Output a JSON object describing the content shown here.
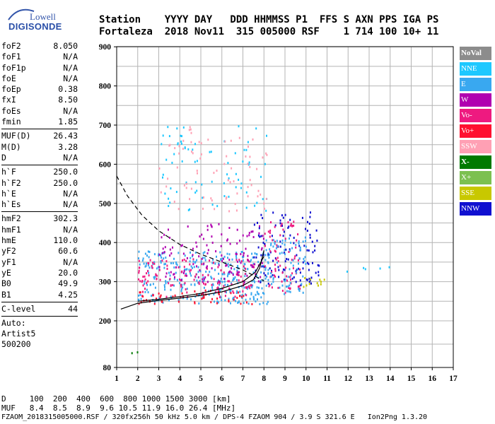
{
  "logo": {
    "line1": "Lowell",
    "line2": "DIGISONDE"
  },
  "header": {
    "labels": "Station    YYYY DAY   DDD HHMMSS P1  FFS S AXN PPS IGA PS",
    "values": "Fortaleza  2018 Nov11  315 005000 RSF    1 714 100 10+ 11"
  },
  "params": {
    "group1": [
      {
        "label": "foF2",
        "value": "8.050"
      },
      {
        "label": "foF1",
        "value": "N/A"
      },
      {
        "label": "foF1p",
        "value": "N/A"
      },
      {
        "label": "foE",
        "value": "N/A"
      },
      {
        "label": "foEp",
        "value": "0.38"
      },
      {
        "label": "fxI",
        "value": "8.50"
      },
      {
        "label": "foEs",
        "value": "N/A"
      },
      {
        "label": "fmin",
        "value": "1.85"
      }
    ],
    "group2": [
      {
        "label": "MUF(D)",
        "value": "26.43"
      },
      {
        "label": "M(D)",
        "value": "3.28"
      },
      {
        "label": "D",
        "value": "N/A"
      }
    ],
    "group3": [
      {
        "label": "h`F",
        "value": "250.0"
      },
      {
        "label": "h`F2",
        "value": "250.0"
      },
      {
        "label": "h`E",
        "value": "N/A"
      },
      {
        "label": "h`Es",
        "value": "N/A"
      }
    ],
    "group4": [
      {
        "label": "hmF2",
        "value": "302.3"
      },
      {
        "label": "hmF1",
        "value": "N/A"
      },
      {
        "label": "hmE",
        "value": "110.0"
      },
      {
        "label": "yF2",
        "value": "60.6"
      },
      {
        "label": "yF1",
        "value": "N/A"
      },
      {
        "label": "yE",
        "value": "20.0"
      },
      {
        "label": "B0",
        "value": "49.9"
      },
      {
        "label": "B1",
        "value": "4.25"
      }
    ],
    "group5": [
      {
        "label": "C-level",
        "value": "44"
      }
    ],
    "auto": [
      "Auto:",
      "Artist5",
      "500200"
    ]
  },
  "legend": [
    {
      "label": "NoVal",
      "color": "#8c8c8c"
    },
    {
      "label": "NNE",
      "color": "#1ec8ff"
    },
    {
      "label": "E",
      "color": "#39a8f0"
    },
    {
      "label": "W",
      "color": "#b000b0"
    },
    {
      "label": "Vo-",
      "color": "#ee1a80"
    },
    {
      "label": "Vo+",
      "color": "#ff1030"
    },
    {
      "label": "SSW",
      "color": "#ffa0b4"
    },
    {
      "label": "X-",
      "color": "#007a00"
    },
    {
      "label": "X+",
      "color": "#7cc050"
    },
    {
      "label": "SSE",
      "color": "#c8c800"
    },
    {
      "label": "NNW",
      "color": "#1010d0"
    }
  ],
  "footer": {
    "d_line": "D     100  200  400  600  800 1000 1500 3000 [km]",
    "muf_line": "MUF   8.4  8.5  8.9  9.6 10.5 11.9 16.0 26.4 [MHz]",
    "file_line": "FZAOM_2018315005000.RSF / 320fx256h 50 kHz 5.0 km / DPS-4 FZAOM 904 / 3.9 S 321.6 E   Ion2Png 1.3.20"
  },
  "chart_data": {
    "type": "scatter",
    "xlim": [
      1,
      17
    ],
    "ylim": [
      80,
      900
    ],
    "x_ticks": [
      "1",
      "2",
      "3",
      "4",
      "5",
      "6",
      "7",
      "8",
      "9",
      "10",
      "11",
      "12",
      "13",
      "14",
      "15",
      "16",
      "17"
    ],
    "y_ticks": [
      "80",
      "200",
      "300",
      "400",
      "500",
      "600",
      "700",
      "800",
      "900"
    ],
    "grid": true,
    "legend_placement": "right",
    "clusters": [
      {
        "series": "E",
        "x": [
          2.0,
          8.2
        ],
        "y": [
          245,
          380
        ],
        "density": 0.75
      },
      {
        "series": "Vo-",
        "x": [
          2.0,
          7.6
        ],
        "y": [
          260,
          360
        ],
        "density": 0.45
      },
      {
        "series": "W",
        "x": [
          3.0,
          8.0
        ],
        "y": [
          300,
          450
        ],
        "density": 0.3
      },
      {
        "series": "Vo+",
        "x": [
          2.0,
          7.4
        ],
        "y": [
          245,
          280
        ],
        "density": 0.5
      },
      {
        "series": "NNE",
        "x": [
          3.0,
          8.2
        ],
        "y": [
          480,
          700
        ],
        "density": 0.12
      },
      {
        "series": "SSW",
        "x": [
          3.0,
          8.2
        ],
        "y": [
          480,
          700
        ],
        "density": 0.12
      },
      {
        "series": "NNW",
        "x": [
          7.5,
          10.6
        ],
        "y": [
          290,
          480
        ],
        "density": 0.35
      },
      {
        "series": "Vo-",
        "x": [
          8.0,
          9.7
        ],
        "y": [
          270,
          460
        ],
        "density": 0.4
      },
      {
        "series": "E",
        "x": [
          8.0,
          10.0
        ],
        "y": [
          270,
          420
        ],
        "density": 0.5
      },
      {
        "series": "SSE",
        "x": [
          9.8,
          11.0
        ],
        "y": [
          282,
          312
        ],
        "density": 0.55
      },
      {
        "series": "NNE",
        "x": [
          11.0,
          14.2
        ],
        "y": [
          320,
          345
        ],
        "density": 0.12
      },
      {
        "series": "X-",
        "x": [
          1.6,
          2.2
        ],
        "y": [
          118,
          128
        ],
        "density": 0.5
      }
    ],
    "curves": [
      {
        "name": "virtual-height",
        "style": "solid",
        "points": [
          [
            1.2,
            230
          ],
          [
            2,
            245
          ],
          [
            3,
            252
          ],
          [
            4,
            258
          ],
          [
            5,
            265
          ],
          [
            6,
            274
          ],
          [
            7,
            290
          ],
          [
            7.5,
            305
          ],
          [
            7.8,
            335
          ],
          [
            8.0,
            380
          ]
        ]
      },
      {
        "name": "fitted-trace",
        "style": "solid",
        "points": [
          [
            2.0,
            250
          ],
          [
            3,
            255
          ],
          [
            4,
            262
          ],
          [
            5,
            270
          ],
          [
            6,
            283
          ],
          [
            7,
            300
          ],
          [
            7.6,
            325
          ],
          [
            8.0,
            365
          ]
        ]
      },
      {
        "name": "dashed-profile",
        "style": "dashed",
        "points": [
          [
            1.0,
            570
          ],
          [
            1.5,
            520
          ],
          [
            2.2,
            470
          ],
          [
            3,
            430
          ],
          [
            4,
            395
          ],
          [
            5,
            370
          ],
          [
            6,
            350
          ],
          [
            7,
            330
          ],
          [
            8,
            302
          ]
        ]
      }
    ]
  }
}
